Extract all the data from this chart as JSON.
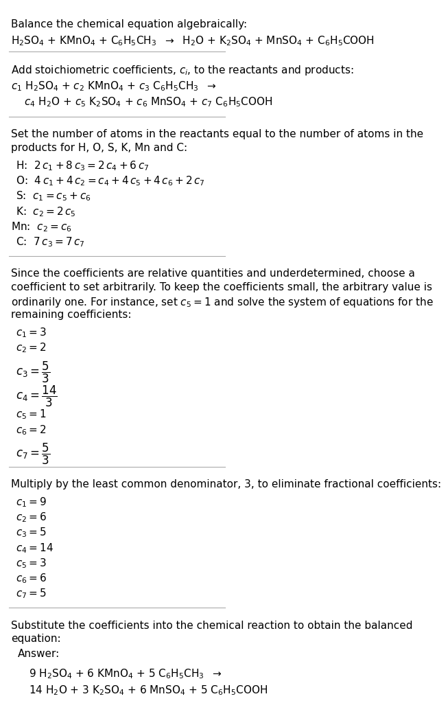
{
  "bg_color": "#ffffff",
  "text_color": "#000000",
  "font_size": 11,
  "sep_color": "#aaaaaa",
  "box_edge_color": "#87ceeb",
  "box_face_color": "#f0f8ff",
  "section1": {
    "line1": "Balance the chemical equation algebraically:",
    "line2": "H$_2$SO$_4$ + KMnO$_4$ + C$_6$H$_5$CH$_3$  $\\rightarrow$  H$_2$O + K$_2$SO$_4$ + MnSO$_4$ + C$_6$H$_5$COOH"
  },
  "section2": {
    "line1": "Add stoichiometric coefficients, $c_i$, to the reactants and products:",
    "line2": "$c_1$ H$_2$SO$_4$ + $c_2$ KMnO$_4$ + $c_3$ C$_6$H$_5$CH$_3$  $\\rightarrow$",
    "line3": "    $c_4$ H$_2$O + $c_5$ K$_2$SO$_4$ + $c_6$ MnSO$_4$ + $c_7$ C$_6$H$_5$COOH"
  },
  "section3": {
    "intro1": "Set the number of atoms in the reactants equal to the number of atoms in the",
    "intro2": "products for H, O, S, K, Mn and C:",
    "H": "H:  $2\\,c_1 + 8\\,c_3 = 2\\,c_4 + 6\\,c_7$",
    "O": "O:  $4\\,c_1 + 4\\,c_2 = c_4 + 4\\,c_5 + 4\\,c_6 + 2\\,c_7$",
    "S": "S:  $c_1 = c_5 + c_6$",
    "K": "K:  $c_2 = 2\\,c_5$",
    "Mn": "Mn:  $c_2 = c_6$",
    "C": "C:  $7\\,c_3 = 7\\,c_7$"
  },
  "section4": {
    "intro1": "Since the coefficients are relative quantities and underdetermined, choose a",
    "intro2": "coefficient to set arbitrarily. To keep the coefficients small, the arbitrary value is",
    "intro3": "ordinarily one. For instance, set $c_5 = 1$ and solve the system of equations for the",
    "intro4": "remaining coefficients:",
    "c1": "$c_1 = 3$",
    "c2": "$c_2 = 2$",
    "c3": "$c_3 = \\dfrac{5}{3}$",
    "c4": "$c_4 = \\dfrac{14}{3}$",
    "c5": "$c_5 = 1$",
    "c6": "$c_6 = 2$",
    "c7": "$c_7 = \\dfrac{5}{3}$"
  },
  "section5": {
    "intro": "Multiply by the least common denominator, 3, to eliminate fractional coefficients:",
    "c1": "$c_1 = 9$",
    "c2": "$c_2 = 6$",
    "c3": "$c_3 = 5$",
    "c4": "$c_4 = 14$",
    "c5": "$c_5 = 3$",
    "c6": "$c_6 = 6$",
    "c7": "$c_7 = 5$"
  },
  "section6": {
    "intro1": "Substitute the coefficients into the chemical reaction to obtain the balanced",
    "intro2": "equation:",
    "answer_label": "Answer:",
    "answer_line1": "9 H$_2$SO$_4$ + 6 KMnO$_4$ + 5 C$_6$H$_5$CH$_3$  $\\rightarrow$",
    "answer_line2": "14 H$_2$O + 3 K$_2$SO$_4$ + 6 MnSO$_4$ + 5 C$_6$H$_5$COOH"
  }
}
